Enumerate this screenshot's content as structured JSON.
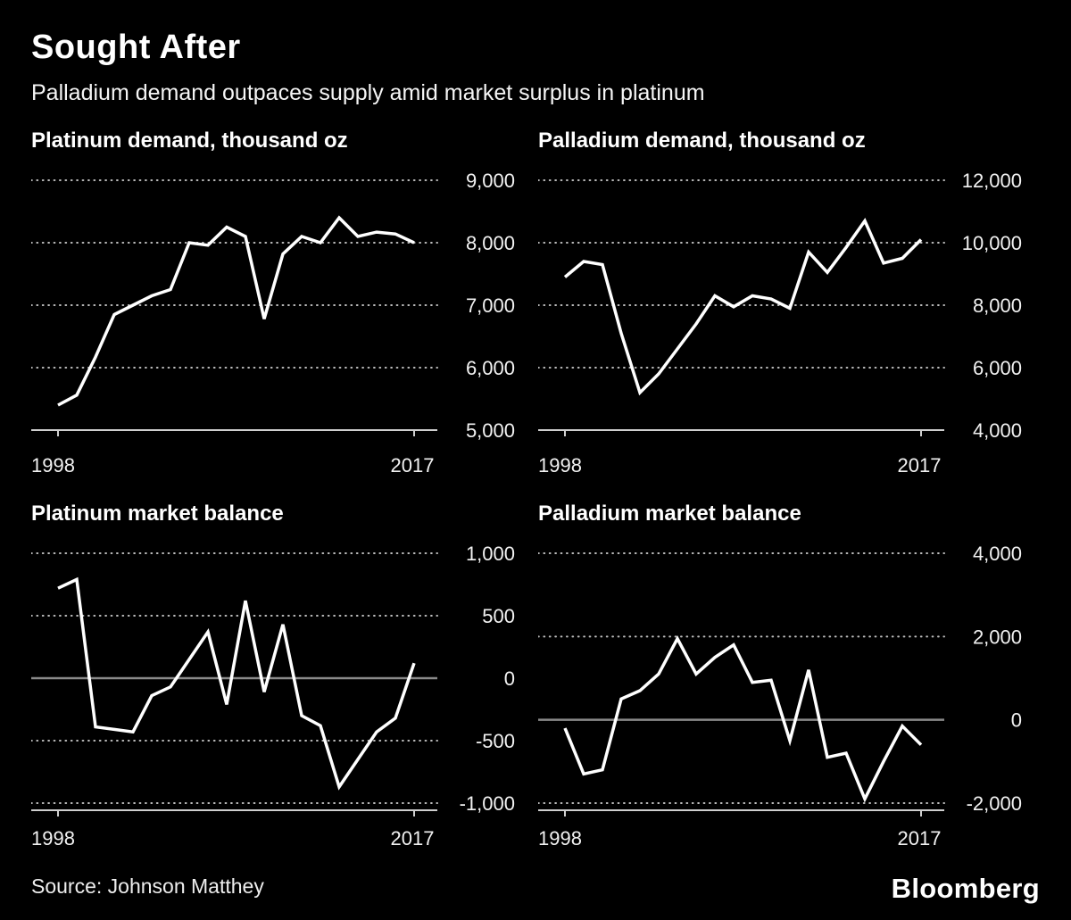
{
  "page": {
    "title": "Sought After",
    "subtitle": "Palladium demand outpaces supply amid market surplus in platinum",
    "source": "Source: Johnson Matthey",
    "brand": "Bloomberg",
    "colors": {
      "background": "#000000",
      "line": "#ffffff",
      "grid": "#bdbdbd",
      "zero_line": "#8a8a8a",
      "axis": "#cfcfcf",
      "text": "#ffffff"
    }
  },
  "chart_data": [
    {
      "type": "line",
      "title": "Platinum demand, thousand oz",
      "x_start_label": "1998",
      "x_end_label": "2017",
      "years": [
        1998,
        1999,
        2000,
        2001,
        2002,
        2003,
        2004,
        2005,
        2006,
        2007,
        2008,
        2009,
        2010,
        2011,
        2012,
        2013,
        2014,
        2015,
        2016,
        2017
      ],
      "values": [
        5400,
        5560,
        6170,
        6850,
        7000,
        7150,
        7250,
        8000,
        7960,
        8250,
        8100,
        6780,
        7820,
        8100,
        8000,
        8400,
        8100,
        8170,
        8140,
        8000
      ],
      "ylim": [
        5000,
        9000
      ],
      "yticks": [
        {
          "value": 9000,
          "label": "9,000"
        },
        {
          "value": 8000,
          "label": "8,000"
        },
        {
          "value": 7000,
          "label": "7,000"
        },
        {
          "value": 6000,
          "label": "6,000"
        },
        {
          "value": 5000,
          "label": "5,000"
        }
      ],
      "zero_line": false,
      "grid": "dotted",
      "legend": "none"
    },
    {
      "type": "line",
      "title": "Palladium demand, thousand oz",
      "x_start_label": "1998",
      "x_end_label": "2017",
      "years": [
        1998,
        1999,
        2000,
        2001,
        2002,
        2003,
        2004,
        2005,
        2006,
        2007,
        2008,
        2009,
        2010,
        2011,
        2012,
        2013,
        2014,
        2015,
        2016,
        2017
      ],
      "values": [
        8900,
        9400,
        9300,
        7100,
        5200,
        5800,
        6600,
        7400,
        8300,
        7950,
        8300,
        8200,
        7900,
        9700,
        9050,
        9850,
        10700,
        9350,
        9500,
        10100
      ],
      "ylim": [
        4000,
        12000
      ],
      "yticks": [
        {
          "value": 12000,
          "label": "12,000"
        },
        {
          "value": 10000,
          "label": "10,000"
        },
        {
          "value": 8000,
          "label": "8,000"
        },
        {
          "value": 6000,
          "label": "6,000"
        },
        {
          "value": 4000,
          "label": "4,000"
        }
      ],
      "zero_line": false,
      "grid": "dotted",
      "legend": "none"
    },
    {
      "type": "line",
      "title": "Platinum market balance",
      "x_start_label": "1998",
      "x_end_label": "2017",
      "years": [
        1998,
        1999,
        2000,
        2001,
        2002,
        2003,
        2004,
        2005,
        2006,
        2007,
        2008,
        2009,
        2010,
        2011,
        2012,
        2013,
        2014,
        2015,
        2016,
        2017
      ],
      "values": [
        720,
        790,
        -390,
        -410,
        -430,
        -140,
        -70,
        150,
        370,
        -210,
        620,
        -110,
        430,
        -300,
        -380,
        -870,
        -650,
        -430,
        -320,
        120
      ],
      "ylim": [
        -1000,
        1000
      ],
      "yticks": [
        {
          "value": 1000,
          "label": "1,000"
        },
        {
          "value": 500,
          "label": "500"
        },
        {
          "value": 0,
          "label": "0"
        },
        {
          "value": -500,
          "label": "-500"
        },
        {
          "value": -1000,
          "label": "-1,000"
        }
      ],
      "zero_line": true,
      "grid": "dotted",
      "legend": "none"
    },
    {
      "type": "line",
      "title": "Palladium market balance",
      "x_start_label": "1998",
      "x_end_label": "2017",
      "years": [
        1998,
        1999,
        2000,
        2001,
        2002,
        2003,
        2004,
        2005,
        2006,
        2007,
        2008,
        2009,
        2010,
        2011,
        2012,
        2013,
        2014,
        2015,
        2016,
        2017
      ],
      "values": [
        -200,
        -1300,
        -1200,
        500,
        700,
        1100,
        1950,
        1100,
        1500,
        1800,
        900,
        950,
        -500,
        1200,
        -900,
        -800,
        -1900,
        -1000,
        -150,
        -600
      ],
      "ylim": [
        -2000,
        4000
      ],
      "yticks": [
        {
          "value": 4000,
          "label": "4,000"
        },
        {
          "value": 2000,
          "label": "2,000"
        },
        {
          "value": 0,
          "label": "0"
        },
        {
          "value": -2000,
          "label": "-2,000"
        }
      ],
      "zero_line": true,
      "grid": "dotted",
      "legend": "none"
    }
  ]
}
